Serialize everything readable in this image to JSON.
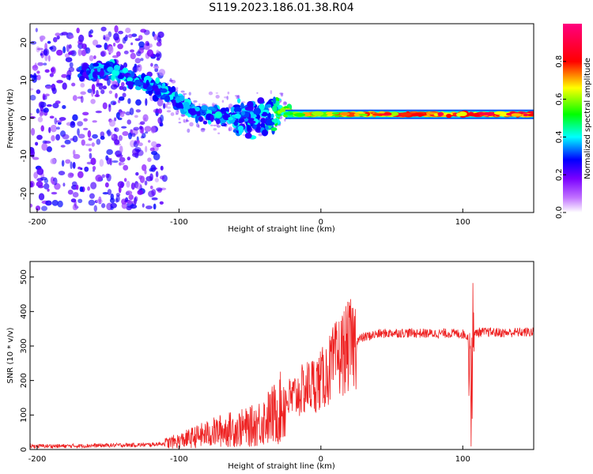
{
  "figure_title": "S119.2023.186.01.38.R04",
  "chart_data": [
    {
      "type": "heatmap",
      "title": "S119.2023.186.01.38.R04",
      "xlabel": "Height of straight line (km)",
      "ylabel": "Frequency (Hz)",
      "xlim": [
        -205,
        150
      ],
      "ylim": [
        -25,
        25
      ],
      "x_ticks": [
        -200,
        -100,
        0,
        100
      ],
      "y_ticks": [
        -20,
        -10,
        0,
        10,
        20
      ],
      "colorbar": {
        "label": "Normalized spectral amplitude",
        "range": [
          0.0,
          1.0
        ],
        "ticks": [
          0.0,
          0.2,
          0.4,
          0.6,
          0.8
        ],
        "colormap": [
          "#ffffff",
          "#7a00ff",
          "#0000ff",
          "#00ffff",
          "#00ff00",
          "#ffff00",
          "#ff0000",
          "#ff007f"
        ]
      },
      "ridge": [
        {
          "x": -165,
          "freq": 12,
          "amp": 0.25
        },
        {
          "x": -150,
          "freq": 13,
          "amp": 0.3
        },
        {
          "x": -130,
          "freq": 10,
          "amp": 0.3
        },
        {
          "x": -110,
          "freq": 7,
          "amp": 0.3
        },
        {
          "x": -95,
          "freq": 3,
          "amp": 0.3
        },
        {
          "x": -80,
          "freq": 1,
          "amp": 0.3
        },
        {
          "x": -60,
          "freq": 0,
          "amp": 0.3
        },
        {
          "x": -40,
          "freq": 1,
          "amp": 0.3
        },
        {
          "x": -30,
          "freq": 2,
          "amp": 0.45
        },
        {
          "x": -15,
          "freq": 1,
          "amp": 0.65
        },
        {
          "x": 0,
          "freq": 1,
          "amp": 0.7
        },
        {
          "x": 50,
          "freq": 1,
          "amp": 0.8
        },
        {
          "x": 100,
          "freq": 1,
          "amp": 0.85
        },
        {
          "x": 150,
          "freq": 1,
          "amp": 0.85
        }
      ]
    },
    {
      "type": "line",
      "xlabel": "Height of straight line (km)",
      "ylabel": "SNR (10 * v/v)",
      "xlim": [
        -205,
        150
      ],
      "ylim": [
        0,
        545
      ],
      "x_ticks": [
        -200,
        -100,
        0,
        100
      ],
      "y_ticks": [
        0,
        100,
        200,
        300,
        400,
        500
      ],
      "color": "#ee2222",
      "series": [
        {
          "name": "SNR",
          "x": [
            -205,
            -180,
            -150,
            -120,
            -110,
            -100,
            -90,
            -80,
            -70,
            -60,
            -50,
            -40,
            -30,
            -25,
            -20,
            -15,
            -10,
            -5,
            0,
            5,
            10,
            15,
            20,
            25,
            30,
            40,
            50,
            60,
            70,
            80,
            90,
            100,
            103,
            105,
            106,
            107,
            108,
            110,
            120,
            130,
            140,
            150
          ],
          "y": [
            10,
            10,
            12,
            14,
            18,
            25,
            35,
            45,
            55,
            60,
            65,
            85,
            110,
            140,
            150,
            165,
            180,
            190,
            200,
            225,
            255,
            280,
            300,
            315,
            325,
            335,
            338,
            338,
            337,
            336,
            337,
            335,
            330,
            310,
            200,
            320,
            330,
            340,
            340,
            338,
            340,
            340
          ]
        }
      ]
    }
  ]
}
